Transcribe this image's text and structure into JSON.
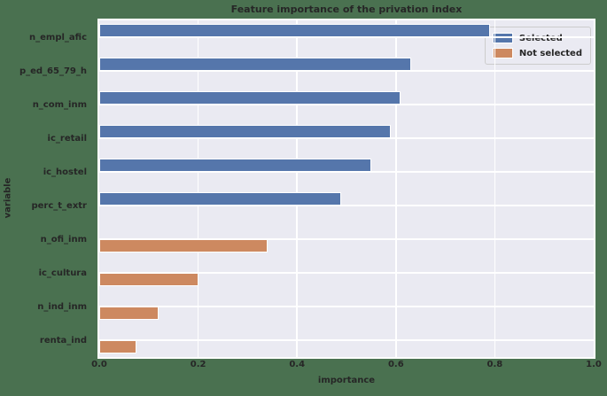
{
  "chart_data": {
    "type": "bar",
    "orientation": "horizontal",
    "title": "Feature importance of the privation index",
    "xlabel": "importance",
    "ylabel": "variable",
    "categories": [
      "n_empl_afic",
      "p_ed_65_79_h",
      "n_com_inm",
      "ic_retail",
      "ic_hostel",
      "perc_t_extr",
      "n_ofi_inm",
      "ic_cultura",
      "n_ind_inm",
      "renta_ind"
    ],
    "series": [
      {
        "name": "Selected",
        "color": "#5576ab",
        "values": [
          0.79,
          0.63,
          0.61,
          0.59,
          0.55,
          0.49,
          null,
          null,
          null,
          null
        ]
      },
      {
        "name": "Not selected",
        "color": "#cd8960",
        "values": [
          null,
          null,
          null,
          null,
          null,
          null,
          0.34,
          0.2,
          0.12,
          0.075
        ]
      }
    ],
    "xlim": [
      0.0,
      1.0
    ],
    "xtick_labels": [
      "0.0",
      "0.2",
      "0.4",
      "0.6",
      "0.8",
      "1.0"
    ],
    "xtick_values": [
      0.0,
      0.2,
      0.4,
      0.6,
      0.8,
      1.0
    ],
    "grid": "on",
    "legend_position": "upper right",
    "colors": {
      "figure_background": "#4a7150",
      "axes_background": "#eaeaf2",
      "grid_color": "#ffffff",
      "text_color": "#262626"
    }
  }
}
